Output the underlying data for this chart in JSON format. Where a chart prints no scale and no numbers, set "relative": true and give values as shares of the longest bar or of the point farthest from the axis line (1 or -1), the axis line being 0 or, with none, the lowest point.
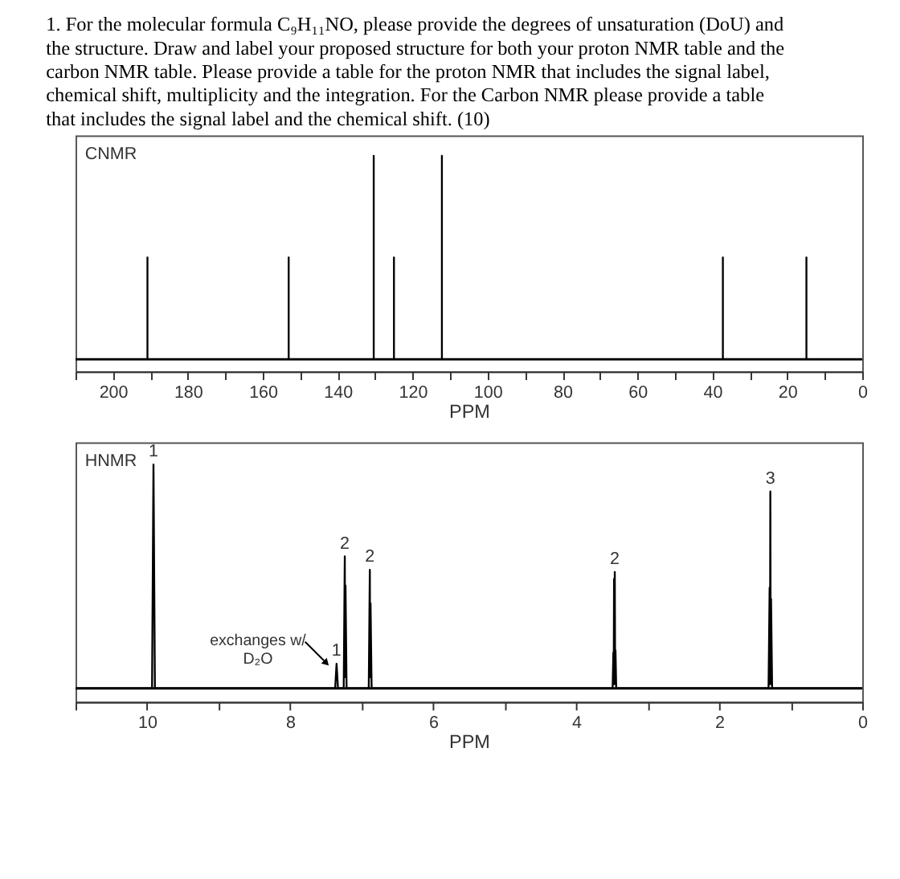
{
  "chart_data": [
    {
      "type": "line",
      "relative": true,
      "title": "1. For the molecular formula C₉H₁₁NO, please provide the degrees of unsaturation (DoU) and the structure. Draw and label your proposed structure for both your proton NMR table and the carbon NMR table. Please provide a table for the proton NMR that includes the signal label, chemical shift, multiplicity and the integration. For the Carbon NMR please provide a table that includes the signal label and the chemical shift. (10)",
      "xlabel": "PPM",
      "annotations": [
        "CNMR"
      ],
      "x": [
        210,
        190.8,
        190.8,
        190.8,
        153.1,
        153.1,
        153.1,
        130.4,
        130.4,
        130.4,
        125,
        125,
        125,
        112.2,
        112.2,
        112.2,
        37.2,
        37.2,
        37.2,
        14.9,
        14.9,
        14.9,
        0
      ],
      "series": [
        {
          "color": "#000000",
          "values": [
            0,
            0,
            0.5,
            0,
            0,
            0.5,
            0,
            0,
            1,
            0,
            0,
            0.5,
            0,
            0,
            1,
            0,
            0,
            0.5,
            0,
            0,
            0.5,
            0,
            0
          ]
        }
      ],
      "xlim": [
        210,
        0
      ],
      "xticks": [
        {
          "value": 210,
          "label": null
        },
        200,
        {
          "value": 190,
          "label": null
        },
        180,
        {
          "value": 170,
          "label": null
        },
        160,
        {
          "value": 150,
          "label": null
        },
        140,
        {
          "value": 130,
          "label": null
        },
        120,
        {
          "value": 110,
          "label": null
        },
        100,
        {
          "value": 90,
          "label": null
        },
        80,
        {
          "value": 70,
          "label": null
        },
        60,
        {
          "value": 50,
          "label": null
        },
        40,
        {
          "value": 30,
          "label": null
        },
        20,
        {
          "value": 10,
          "label": null
        },
        0
      ]
    },
    {
      "type": "line",
      "relative": true,
      "xlabel": "PPM",
      "annotations": [
        "HNMR",
        {
          "text": "1",
          "x": 9.91,
          "y": 1.0
        },
        {
          "text": "exchanges w/\nD₂O",
          "x": 7.35,
          "y": 0.11
        },
        {
          "text": "1",
          "x": 7.35,
          "y": 0.11
        },
        {
          "text": "2",
          "x": 7.235,
          "y": 0.59
        },
        {
          "text": "2",
          "x": 6.885,
          "y": 0.53
        },
        {
          "text": "2",
          "x": 3.46,
          "y": 0.52
        },
        {
          "text": "3",
          "x": 1.285,
          "y": 0.88
        }
      ],
      "series": [
        {
          "color": "#000000",
          "x": [
            11,
            9.93,
            9.91,
            9.89,
            7.37,
            7.35,
            7.33,
            7.25,
            7.235,
            7.23,
            7.225,
            7.21,
            6.9,
            6.885,
            6.88,
            6.875,
            6.86,
            3.49,
            3.48,
            3.475,
            3.47,
            3.465,
            3.46,
            3.455,
            3.45,
            3.44,
            1.31,
            1.295,
            1.29,
            1.285,
            1.28,
            1.275,
            1.26,
            0
          ],
          "values": [
            0,
            0,
            1.0,
            0,
            0,
            0.11,
            0,
            0,
            0.59,
            0.05,
            0.46,
            0,
            0,
            0.53,
            0.05,
            0.38,
            0,
            0,
            0.16,
            0.02,
            0.49,
            0.02,
            0.52,
            0.02,
            0.17,
            0,
            0,
            0.45,
            0.02,
            0.88,
            0.02,
            0.4,
            0,
            0
          ]
        }
      ],
      "xlim": [
        11,
        0
      ],
      "xticks": [
        {
          "value": 11,
          "label": null
        },
        10,
        {
          "value": 9,
          "label": null
        },
        8,
        {
          "value": 7,
          "label": null
        },
        6,
        {
          "value": 5,
          "label": null
        },
        4,
        {
          "value": 3,
          "label": null
        },
        2,
        {
          "value": 1,
          "label": null
        },
        0
      ]
    }
  ]
}
